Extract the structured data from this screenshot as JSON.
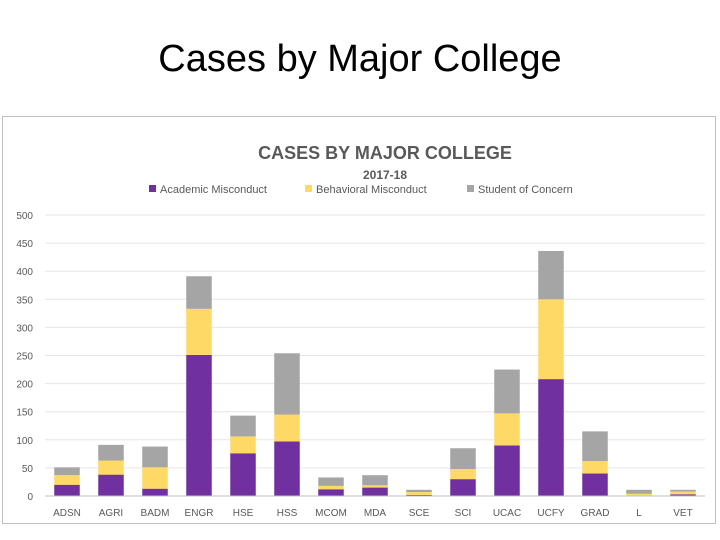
{
  "slide": {
    "title": "Cases by Major College"
  },
  "colors": {
    "academic": "#7030a0",
    "behavioral": "#ffd966",
    "concern": "#a5a5a5",
    "grid": "#e6e6e6",
    "axis": "#bfbfbf"
  },
  "chart_data": {
    "type": "bar",
    "stacked": true,
    "title": "CASES BY MAJOR COLLEGE",
    "subtitle": "2017-18",
    "categories": [
      "ADSN",
      "AGRI",
      "BADM",
      "ENGR",
      "HSE",
      "HSS",
      "MCOM",
      "MDA",
      "SCE",
      "SCI",
      "UCAC",
      "UCFY",
      "GRAD",
      "L",
      "VET"
    ],
    "series": [
      {
        "name": "Academic Misconduct",
        "color_key": "academic",
        "values": [
          20,
          38,
          13,
          251,
          76,
          97,
          12,
          15,
          2,
          30,
          90,
          208,
          40,
          1,
          3
        ]
      },
      {
        "name": "Behavioral Misconduct",
        "color_key": "behavioral",
        "values": [
          17,
          25,
          38,
          82,
          30,
          48,
          6,
          4,
          5,
          18,
          57,
          142,
          22,
          3,
          5
        ]
      },
      {
        "name": "Student of Concern",
        "color_key": "concern",
        "values": [
          14,
          28,
          37,
          58,
          37,
          109,
          15,
          18,
          4,
          37,
          78,
          86,
          53,
          7,
          3
        ]
      }
    ],
    "yticks": [
      "0",
      "50",
      "100",
      "150",
      "200",
      "250",
      "300",
      "350",
      "400",
      "450",
      "500"
    ],
    "ylim": [
      0,
      500
    ],
    "xlabel": "",
    "ylabel": "",
    "legend_position": "top",
    "grid": true
  }
}
